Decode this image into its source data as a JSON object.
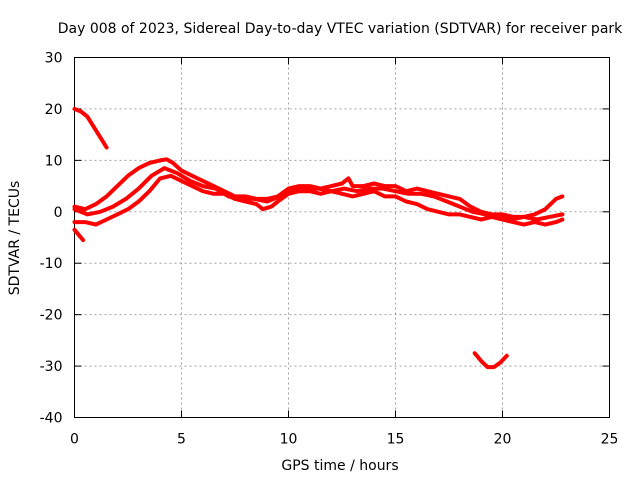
{
  "chart_data": {
    "type": "line",
    "title": "Day 008 of 2023, Sidereal Day-to-day VTEC variation (SDTVAR) for receiver park",
    "xlabel": "GPS time / hours",
    "ylabel": "SDTVAR / TECUs",
    "xlim": [
      0,
      25
    ],
    "ylim": [
      -40,
      30
    ],
    "xticks": [
      0,
      5,
      10,
      15,
      20,
      25
    ],
    "yticks": [
      -40,
      -30,
      -20,
      -10,
      0,
      10,
      20,
      30
    ],
    "grid": true,
    "color": "#ff0000",
    "series": [
      {
        "name": "arc-early-high",
        "x": [
          0.0,
          0.3,
          0.6,
          0.9,
          1.2,
          1.5
        ],
        "y": [
          20,
          19.5,
          18.5,
          16.5,
          14.5,
          12.5
        ]
      },
      {
        "name": "arc-early-low",
        "x": [
          0.0,
          0.2,
          0.4
        ],
        "y": [
          -3.5,
          -4.5,
          -5.5
        ]
      },
      {
        "name": "main-upper",
        "x": [
          0.0,
          0.5,
          1.0,
          1.5,
          2.0,
          2.5,
          3.0,
          3.5,
          4.0,
          4.3,
          4.6,
          5.0,
          5.5,
          6.0,
          6.5,
          7.0,
          7.5,
          8.0,
          8.5,
          9.0,
          9.5,
          10.0,
          10.5,
          11.0,
          11.5,
          12.0,
          12.5,
          12.8,
          13.0,
          13.5,
          14.0,
          14.5,
          15.0,
          15.5,
          16.0,
          16.5,
          17.0,
          17.5,
          18.0,
          18.5,
          19.0,
          19.5,
          20.0,
          20.5,
          21.0,
          21.5,
          22.0,
          22.5,
          22.8
        ],
        "y": [
          1.0,
          0.5,
          1.5,
          3.0,
          5.0,
          7.0,
          8.5,
          9.5,
          10.0,
          10.2,
          9.5,
          8.0,
          7.0,
          6.0,
          5.0,
          4.0,
          3.0,
          3.0,
          2.5,
          2.5,
          3.0,
          4.5,
          5.0,
          5.0,
          4.5,
          5.0,
          5.5,
          6.5,
          5.0,
          5.0,
          5.5,
          5.0,
          5.0,
          4.0,
          4.5,
          4.0,
          3.5,
          3.0,
          2.5,
          1.0,
          0.0,
          -0.5,
          -0.5,
          -1.0,
          -1.0,
          -0.5,
          0.5,
          2.5,
          3.0
        ]
      },
      {
        "name": "main-lower",
        "x": [
          0.0,
          0.5,
          1.0,
          1.5,
          2.0,
          2.5,
          3.0,
          3.5,
          4.0,
          4.5,
          5.0,
          5.5,
          6.0,
          6.5,
          7.0,
          7.5,
          8.0,
          8.5,
          8.8,
          9.2,
          9.5,
          10.0,
          10.5,
          11.0,
          11.5,
          12.0,
          12.5,
          13.0,
          13.5,
          14.0,
          14.5,
          15.0,
          15.5,
          16.0,
          16.5,
          17.0,
          17.5,
          18.0,
          18.5,
          19.0,
          19.5,
          20.0,
          20.5,
          21.0,
          21.5,
          22.0,
          22.5,
          22.8
        ],
        "y": [
          -2.0,
          -2.0,
          -2.5,
          -1.5,
          -0.5,
          0.5,
          2.0,
          4.0,
          6.5,
          7.0,
          6.0,
          5.0,
          4.0,
          3.5,
          3.5,
          2.5,
          2.0,
          1.5,
          0.5,
          1.0,
          2.0,
          3.5,
          4.0,
          4.0,
          3.5,
          4.0,
          3.5,
          3.0,
          3.5,
          4.0,
          3.0,
          3.0,
          2.0,
          1.5,
          0.5,
          0.0,
          -0.5,
          -0.5,
          -1.0,
          -1.5,
          -1.0,
          -1.5,
          -2.0,
          -2.5,
          -2.0,
          -2.5,
          -2.0,
          -1.5
        ]
      },
      {
        "name": "main-mid",
        "x": [
          0.0,
          0.6,
          1.2,
          1.8,
          2.4,
          3.0,
          3.6,
          4.2,
          4.8,
          5.4,
          6.0,
          6.6,
          7.2,
          7.8,
          8.4,
          9.0,
          9.6,
          10.2,
          10.8,
          11.4,
          12.0,
          12.6,
          13.2,
          13.8,
          14.4,
          15.0,
          15.6,
          16.2,
          16.8,
          17.4,
          18.0,
          18.6,
          19.2,
          19.8,
          20.4,
          21.0,
          21.6,
          22.2,
          22.8
        ],
        "y": [
          0.5,
          -0.5,
          0.0,
          1.0,
          2.5,
          4.5,
          7.0,
          8.5,
          7.5,
          6.0,
          5.0,
          4.5,
          3.0,
          2.5,
          2.5,
          2.0,
          3.0,
          4.0,
          4.5,
          4.5,
          4.0,
          4.5,
          4.0,
          4.5,
          4.5,
          4.0,
          3.5,
          3.5,
          3.0,
          2.0,
          1.0,
          0.0,
          -0.5,
          -1.0,
          -1.5,
          -1.0,
          -1.5,
          -1.0,
          -0.5
        ]
      },
      {
        "name": "arc-late-low",
        "x": [
          18.7,
          19.0,
          19.3,
          19.6,
          19.9,
          20.2
        ],
        "y": [
          -27.5,
          -29.0,
          -30.2,
          -30.2,
          -29.3,
          -28.0
        ]
      }
    ]
  }
}
